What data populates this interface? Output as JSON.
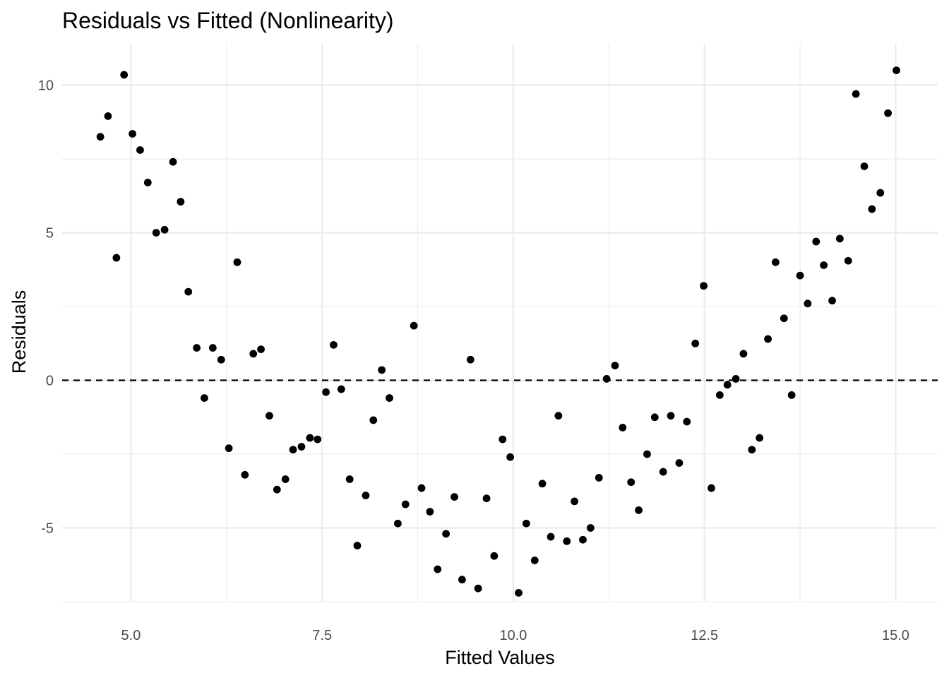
{
  "chart_data": {
    "type": "scatter",
    "title": "Residuals vs Fitted (Nonlinearity)",
    "xlabel": "Fitted Values",
    "ylabel": "Residuals",
    "xlim": [
      4.1,
      15.55
    ],
    "ylim": [
      -7.5,
      11.4
    ],
    "x_ticks": [
      5.0,
      7.5,
      10.0,
      12.5,
      15.0
    ],
    "x_tick_labels": [
      "5.0",
      "7.5",
      "10.0",
      "12.5",
      "15.0"
    ],
    "y_ticks": [
      10,
      5,
      0,
      -5
    ],
    "y_tick_labels": [
      "10",
      "5",
      "0",
      "-5"
    ],
    "grid": true,
    "reference_line": {
      "y": 0,
      "style": "dashed",
      "color": "#000000"
    },
    "point_color": "#000000",
    "x": [
      4.6,
      4.7,
      4.81,
      4.91,
      5.02,
      5.12,
      5.22,
      5.33,
      5.44,
      5.55,
      5.65,
      5.75,
      5.86,
      5.96,
      6.07,
      6.18,
      6.28,
      6.39,
      6.49,
      6.6,
      6.7,
      6.81,
      6.91,
      7.02,
      7.12,
      7.23,
      7.34,
      7.44,
      7.55,
      7.65,
      7.75,
      7.86,
      7.96,
      8.07,
      8.17,
      8.28,
      8.38,
      8.49,
      8.59,
      8.7,
      8.8,
      8.91,
      9.01,
      9.12,
      9.23,
      9.33,
      9.44,
      9.54,
      9.65,
      9.75,
      9.86,
      9.96,
      10.07,
      10.17,
      10.28,
      10.38,
      10.49,
      10.59,
      10.7,
      10.8,
      10.91,
      11.01,
      11.12,
      11.22,
      11.33,
      11.43,
      11.54,
      11.64,
      11.75,
      11.85,
      11.96,
      12.06,
      12.17,
      12.27,
      12.38,
      12.49,
      12.59,
      12.7,
      12.8,
      12.91,
      13.01,
      13.12,
      13.22,
      13.33,
      13.43,
      13.54,
      13.64,
      13.75,
      13.85,
      13.96,
      14.06,
      14.17,
      14.27,
      14.38,
      14.48,
      14.59,
      14.69,
      14.8,
      14.9,
      15.01
    ],
    "y": [
      8.25,
      8.95,
      4.15,
      10.35,
      8.35,
      7.8,
      6.7,
      5.0,
      5.1,
      7.4,
      6.05,
      3.0,
      1.1,
      -0.6,
      1.1,
      0.7,
      -2.3,
      4.0,
      -3.2,
      0.9,
      1.05,
      -1.2,
      -3.7,
      -3.35,
      -2.35,
      -2.25,
      -1.95,
      -2.0,
      -0.4,
      1.2,
      -0.3,
      -3.35,
      -5.6,
      -3.9,
      -1.35,
      0.35,
      -0.6,
      -4.85,
      -4.2,
      1.85,
      -3.65,
      -4.45,
      -6.4,
      -5.2,
      -3.95,
      -6.75,
      0.7,
      -7.05,
      -4.0,
      -5.95,
      -2.0,
      -2.6,
      -7.2,
      -4.85,
      -6.1,
      -3.5,
      -5.3,
      -1.2,
      -5.45,
      -4.1,
      -5.4,
      -5.0,
      -3.3,
      0.05,
      0.5,
      -1.6,
      -3.45,
      -4.4,
      -2.5,
      -1.25,
      -3.1,
      -1.2,
      -2.8,
      -1.4,
      1.25,
      3.2,
      -3.65,
      -0.5,
      -0.15,
      0.05,
      0.9,
      -2.35,
      -1.95,
      1.4,
      4.0,
      2.1,
      -0.5,
      3.55,
      2.6,
      4.7,
      3.9,
      2.7,
      4.8,
      4.05,
      9.7,
      7.25,
      5.8,
      6.35,
      9.05,
      10.5
    ]
  }
}
